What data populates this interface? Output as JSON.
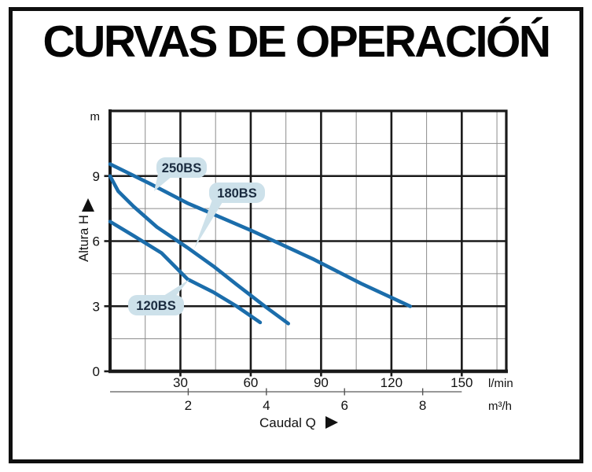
{
  "title": "CURVAS DE OPERACIÓŃ",
  "chart_data": {
    "type": "line",
    "title": "CURVAS DE OPERACIÓŃ",
    "xlabel": "Caudal  Q",
    "ylabel": "Altura  H",
    "grid": true,
    "legend_position": "callouts-on-curves",
    "x_axis_primary": {
      "unit": "l/min",
      "tick_values": [
        30,
        60,
        90,
        120,
        150
      ],
      "tick_labels": [
        "30",
        "60",
        "90",
        "120",
        "150"
      ],
      "range": [
        0,
        169
      ],
      "minor_step": 15
    },
    "x_axis_secondary": {
      "unit": "m³/h",
      "tick_values": [
        2,
        4,
        6,
        8
      ],
      "tick_labels": [
        "2",
        "4",
        "6",
        "8"
      ],
      "lmin_per_unit": 16.667
    },
    "y_axis": {
      "unit": "m",
      "tick_values": [
        0,
        3,
        6,
        9
      ],
      "tick_labels": [
        "0",
        "3",
        "6",
        "9"
      ],
      "range": [
        0,
        12
      ],
      "minor_step": 1.5
    },
    "series": [
      {
        "name": "250BS",
        "color": "#1b6dab",
        "points_q_lmin_h_m": [
          [
            0,
            9.55
          ],
          [
            17,
            8.65
          ],
          [
            33,
            7.75
          ],
          [
            60,
            6.5
          ],
          [
            87,
            5.15
          ],
          [
            107,
            4.05
          ],
          [
            128,
            3.0
          ]
        ]
      },
      {
        "name": "180BS",
        "color": "#1b6dab",
        "points_q_lmin_h_m": [
          [
            0,
            9.0
          ],
          [
            3.5,
            8.3
          ],
          [
            10,
            7.6
          ],
          [
            20,
            6.65
          ],
          [
            33,
            5.7
          ],
          [
            44,
            4.85
          ],
          [
            54,
            4.0
          ],
          [
            66,
            3.0
          ],
          [
            76,
            2.2
          ]
        ]
      },
      {
        "name": "120BS",
        "color": "#1b6dab",
        "points_q_lmin_h_m": [
          [
            0,
            6.9
          ],
          [
            10,
            6.25
          ],
          [
            22,
            5.45
          ],
          [
            33,
            4.25
          ],
          [
            44,
            3.65
          ],
          [
            54,
            3.0
          ],
          [
            64,
            2.25
          ]
        ]
      }
    ],
    "callout_fill": "#cde1ea",
    "callout_text_color": "#1a2b3f",
    "axis_color": "#1a1a1a",
    "minor_grid_color": "#8c8c8c"
  }
}
